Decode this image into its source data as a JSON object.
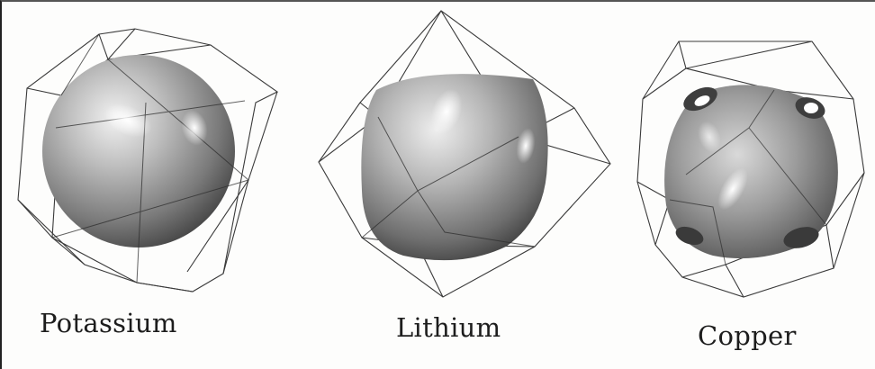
{
  "panels": [
    {
      "label": "Potassium"
    },
    {
      "label": "Lithium"
    },
    {
      "label": "Copper"
    }
  ],
  "colors": {
    "surface_light": "#dcdcdc",
    "surface_mid": "#9a9a9a",
    "surface_dark": "#4a4a4a",
    "cell_edges": "#3a3a3a",
    "background": "#fdfdfc"
  },
  "icons": [
    "fermi-surface-sphere",
    "fermi-surface-rounded-cube",
    "fermi-surface-necked-sphere",
    "brillouin-zone-wireframe"
  ]
}
